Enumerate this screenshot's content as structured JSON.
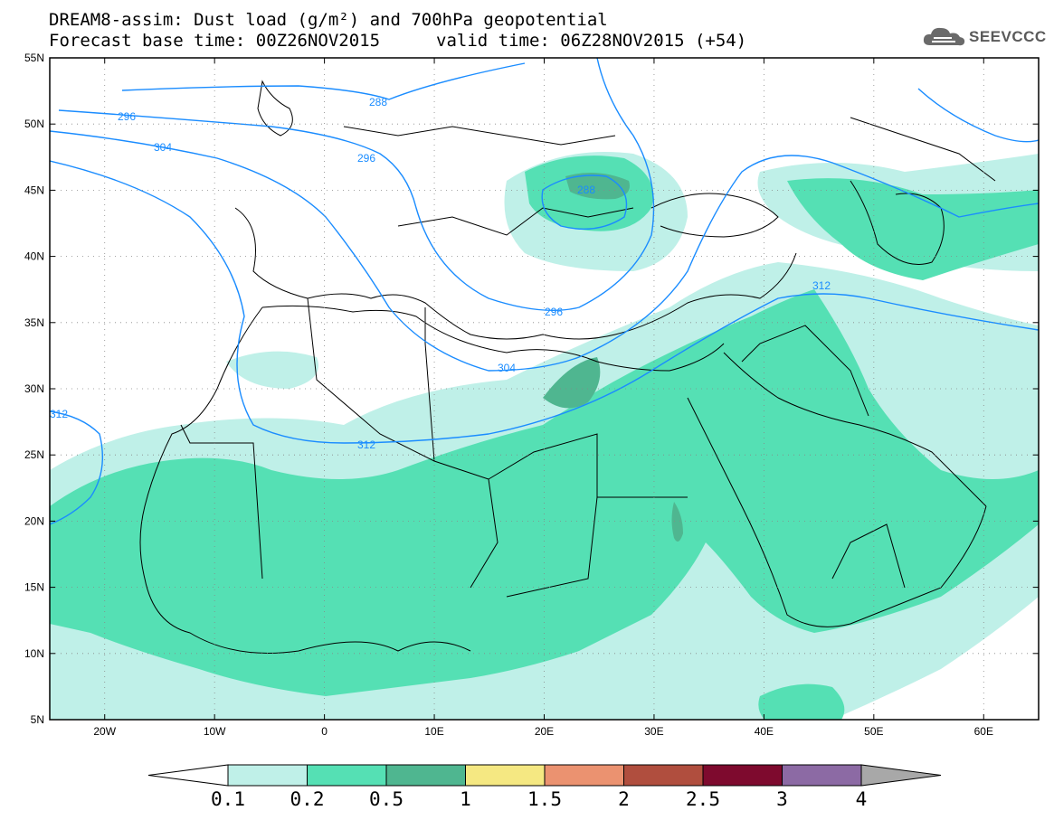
{
  "title": {
    "line1": "DREAM8-assim: Dust load (g/m²) and 700hPa geopotential",
    "base": "Forecast base time: 00Z26NOV2015",
    "valid": "valid time: 06Z28NOV2015 (+54)"
  },
  "logo": {
    "text": "SEEVCCC"
  },
  "axes": {
    "lat_labels": [
      "55N",
      "50N",
      "45N",
      "40N",
      "35N",
      "30N",
      "25N",
      "20N",
      "15N",
      "10N",
      "5N"
    ],
    "lat_values": [
      55,
      50,
      45,
      40,
      35,
      30,
      25,
      20,
      15,
      10,
      5
    ],
    "lon_labels": [
      "20W",
      "10W",
      "0",
      "10E",
      "20E",
      "30E",
      "40E",
      "50E",
      "60E"
    ],
    "lon_values": [
      -20,
      -10,
      0,
      10,
      20,
      30,
      40,
      50,
      60
    ],
    "lon_range": [
      -25,
      65
    ],
    "lat_range": [
      5,
      55
    ]
  },
  "colorbar": {
    "labels": [
      "0.1",
      "0.2",
      "0.5",
      "1",
      "1.5",
      "2",
      "2.5",
      "3",
      "4"
    ],
    "colors": [
      "#bff0e8",
      "#55e0b4",
      "#4fb690",
      "#f5e882",
      "#eb9270",
      "#b04e3e",
      "#7e0a2e",
      "#8c6aa4",
      "#a8a8a8"
    ]
  },
  "contours": {
    "color": "#1a8cff",
    "labels": [
      "288",
      "296",
      "304",
      "312",
      "296",
      "304",
      "296",
      "288",
      "312",
      "312"
    ]
  },
  "map_colors": {
    "light": "#bff0e8",
    "medium": "#55e0b4",
    "dark": "#4fb690"
  }
}
